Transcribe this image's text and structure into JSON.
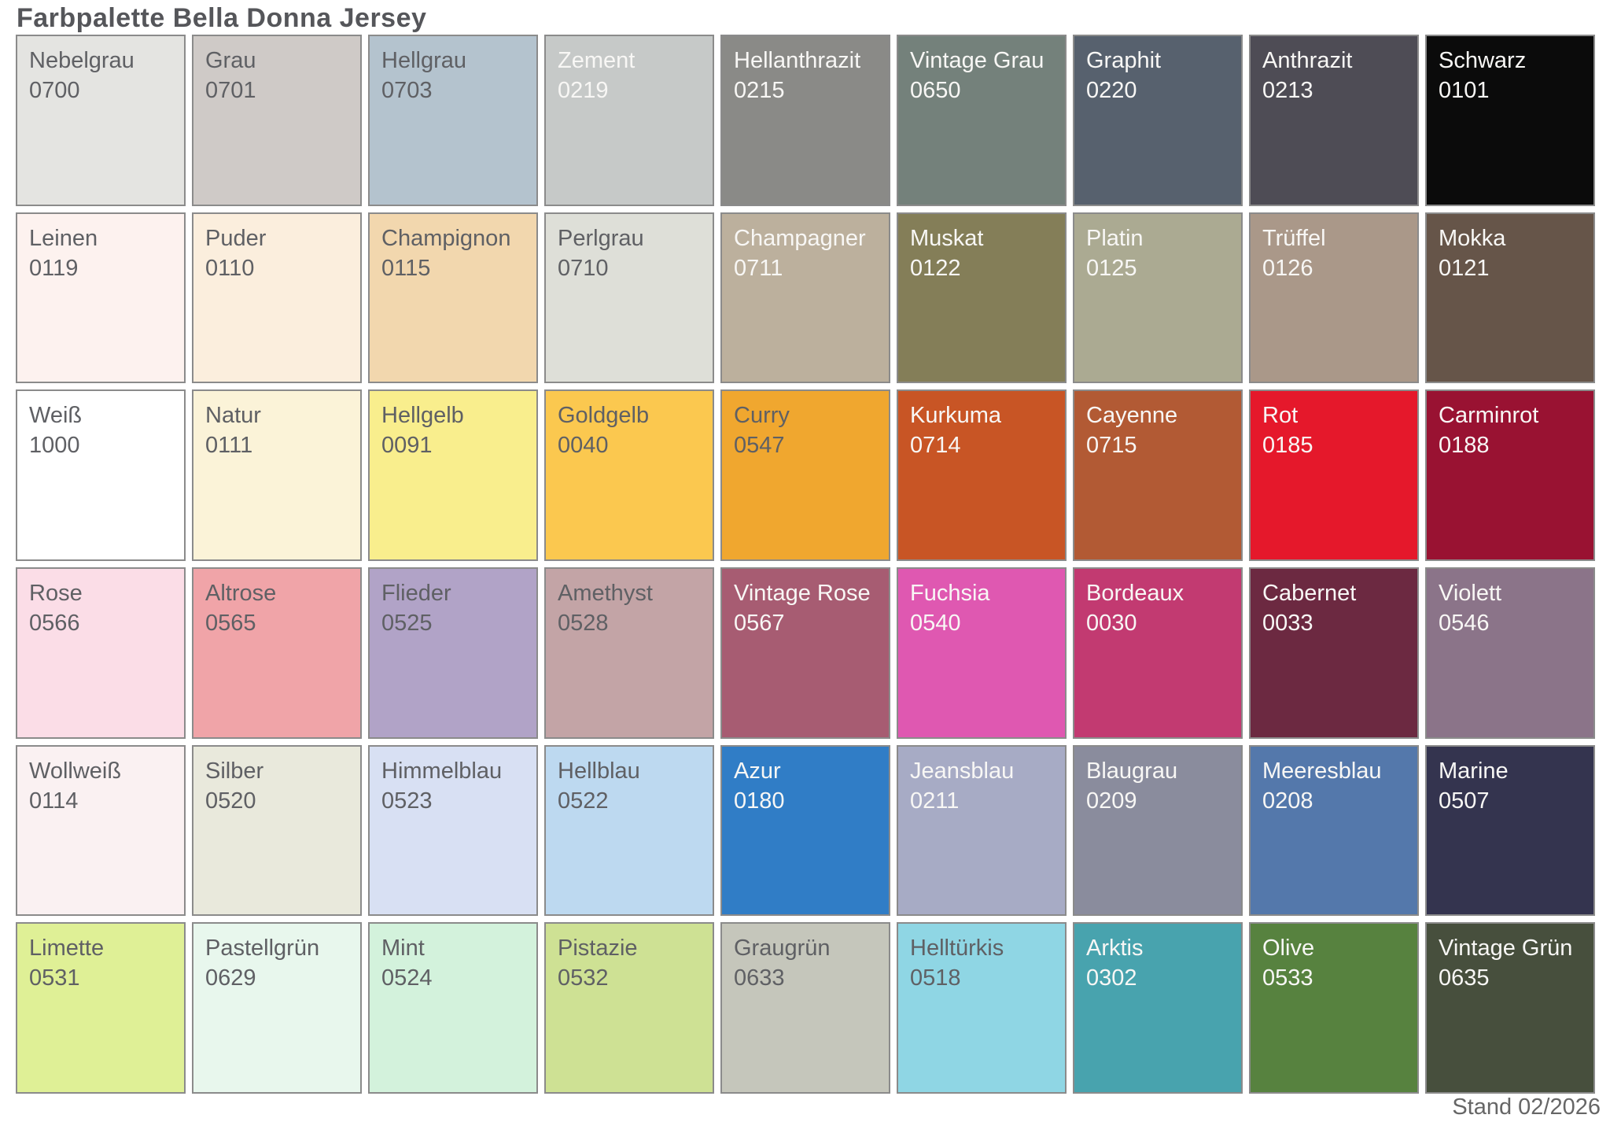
{
  "palette": {
    "title": "Farbpalette Bella Donna Jersey",
    "footer": "Stand 02/2026",
    "colors": {
      "text_dark": "#5f6064",
      "text_light": "#f8f7f5",
      "cell_border": "#8b8b8b",
      "title_color": "#55565a",
      "footer_color": "#666666"
    },
    "rows": [
      [
        {
          "name": "Nebelgrau",
          "code": "0700",
          "bg": "#e4e4e1",
          "text": "dark"
        },
        {
          "name": "Grau",
          "code": "0701",
          "bg": "#cfcac7",
          "text": "dark"
        },
        {
          "name": "Hellgrau",
          "code": "0703",
          "bg": "#b4c3ce",
          "text": "dark"
        },
        {
          "name": "Zement",
          "code": "0219",
          "bg": "#c6c9c8",
          "text": "light"
        },
        {
          "name": "Hellanthrazit",
          "code": "0215",
          "bg": "#8a8a87",
          "text": "light"
        },
        {
          "name": "Vintage Grau",
          "code": "0650",
          "bg": "#74817b",
          "text": "light"
        },
        {
          "name": "Graphit",
          "code": "0220",
          "bg": "#57616e",
          "text": "light"
        },
        {
          "name": "Anthrazit",
          "code": "0213",
          "bg": "#4e4c55",
          "text": "light"
        },
        {
          "name": "Schwarz",
          "code": "0101",
          "bg": "#0b0b0b",
          "text": "light"
        }
      ],
      [
        {
          "name": "Leinen",
          "code": "0119",
          "bg": "#fdf2ef",
          "text": "dark"
        },
        {
          "name": "Puder",
          "code": "0110",
          "bg": "#fbeedd",
          "text": "dark"
        },
        {
          "name": "Champignon",
          "code": "0115",
          "bg": "#f2d7ae",
          "text": "dark"
        },
        {
          "name": "Perlgrau",
          "code": "0710",
          "bg": "#dedfd8",
          "text": "dark"
        },
        {
          "name": "Champagner",
          "code": "0711",
          "bg": "#bcb09d",
          "text": "light"
        },
        {
          "name": "Muskat",
          "code": "0122",
          "bg": "#847e58",
          "text": "light"
        },
        {
          "name": "Platin",
          "code": "0125",
          "bg": "#abaa92",
          "text": "light"
        },
        {
          "name": "Trüffel",
          "code": "0126",
          "bg": "#aa9889",
          "text": "light"
        },
        {
          "name": "Mokka",
          "code": "0121",
          "bg": "#665549",
          "text": "light"
        }
      ],
      [
        {
          "name": "Weiß",
          "code": "1000",
          "bg": "#ffffff",
          "text": "dark"
        },
        {
          "name": "Natur",
          "code": "0111",
          "bg": "#fbf3d8",
          "text": "dark"
        },
        {
          "name": "Hellgelb",
          "code": "0091",
          "bg": "#f9ee8d",
          "text": "dark"
        },
        {
          "name": "Goldgelb",
          "code": "0040",
          "bg": "#fbc84f",
          "text": "dark"
        },
        {
          "name": "Curry",
          "code": "0547",
          "bg": "#f0a72f",
          "text": "dark"
        },
        {
          "name": "Kurkuma",
          "code": "0714",
          "bg": "#c85525",
          "text": "light"
        },
        {
          "name": "Cayenne",
          "code": "0715",
          "bg": "#b25a34",
          "text": "light"
        },
        {
          "name": "Rot",
          "code": "0185",
          "bg": "#e5182b",
          "text": "light"
        },
        {
          "name": "Carminrot",
          "code": "0188",
          "bg": "#991232",
          "text": "light"
        }
      ],
      [
        {
          "name": "Rose",
          "code": "0566",
          "bg": "#fbdde7",
          "text": "dark"
        },
        {
          "name": "Altrose",
          "code": "0565",
          "bg": "#f0a4a8",
          "text": "dark"
        },
        {
          "name": "Flieder",
          "code": "0525",
          "bg": "#b1a3c7",
          "text": "dark"
        },
        {
          "name": "Amethyst",
          "code": "0528",
          "bg": "#c3a4a6",
          "text": "dark"
        },
        {
          "name": "Vintage Rose",
          "code": "0567",
          "bg": "#a75c72",
          "text": "light"
        },
        {
          "name": "Fuchsia",
          "code": "0540",
          "bg": "#df58b1",
          "text": "light"
        },
        {
          "name": "Bordeaux",
          "code": "0030",
          "bg": "#c23a71",
          "text": "light"
        },
        {
          "name": "Cabernet",
          "code": "0033",
          "bg": "#6c2941",
          "text": "light"
        },
        {
          "name": "Violett",
          "code": "0546",
          "bg": "#8b7489",
          "text": "light"
        }
      ],
      [
        {
          "name": "Wollweiß",
          "code": "0114",
          "bg": "#faf1f2",
          "text": "dark"
        },
        {
          "name": "Silber",
          "code": "0520",
          "bg": "#e9e9dc",
          "text": "dark"
        },
        {
          "name": "Himmelblau",
          "code": "0523",
          "bg": "#d8e0f3",
          "text": "dark"
        },
        {
          "name": "Hellblau",
          "code": "0522",
          "bg": "#bdd9f0",
          "text": "dark"
        },
        {
          "name": "Azur",
          "code": "0180",
          "bg": "#307dc6",
          "text": "light"
        },
        {
          "name": "Jeansblau",
          "code": "0211",
          "bg": "#a7abc5",
          "text": "light"
        },
        {
          "name": "Blaugrau",
          "code": "0209",
          "bg": "#8a8c9d",
          "text": "light"
        },
        {
          "name": "Meeresblau",
          "code": "0208",
          "bg": "#5478ab",
          "text": "light"
        },
        {
          "name": "Marine",
          "code": "0507",
          "bg": "#34344f",
          "text": "light"
        }
      ],
      [
        {
          "name": "Limette",
          "code": "0531",
          "bg": "#dff096",
          "text": "dark"
        },
        {
          "name": "Pastellgrün",
          "code": "0629",
          "bg": "#e8f7ed",
          "text": "dark"
        },
        {
          "name": "Mint",
          "code": "0524",
          "bg": "#d3f2dc",
          "text": "dark"
        },
        {
          "name": "Pistazie",
          "code": "0532",
          "bg": "#cee194",
          "text": "dark"
        },
        {
          "name": "Graugrün",
          "code": "0633",
          "bg": "#c5c6bb",
          "text": "dark"
        },
        {
          "name": "Helltürkis",
          "code": "0518",
          "bg": "#8fd6e4",
          "text": "dark"
        },
        {
          "name": "Arktis",
          "code": "0302",
          "bg": "#48a3ae",
          "text": "light"
        },
        {
          "name": "Olive",
          "code": "0533",
          "bg": "#57823f",
          "text": "light"
        },
        {
          "name": "Vintage Grün",
          "code": "0635",
          "bg": "#474f3d",
          "text": "light"
        }
      ]
    ]
  }
}
